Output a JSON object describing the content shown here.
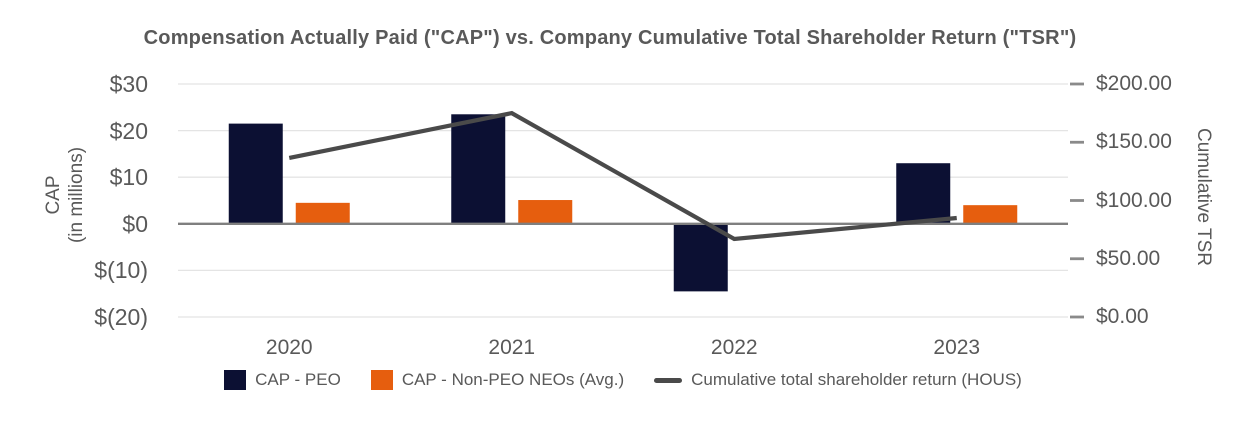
{
  "chart_data": {
    "type": "combo-bar-line",
    "title": "Compensation Actually Paid (\"CAP\") vs. Company Cumulative Total Shareholder Return (\"TSR\")",
    "categories": [
      "2020",
      "2021",
      "2022",
      "2023"
    ],
    "series": [
      {
        "name": "CAP - PEO",
        "type": "bar",
        "axis": "left",
        "color": "#0c1033",
        "values": [
          21.5,
          23.5,
          -14.5,
          13
        ]
      },
      {
        "name": "CAP - Non-PEO NEOs (Avg.)",
        "type": "bar",
        "axis": "left",
        "color": "#e65e0e",
        "values": [
          4.5,
          5.1,
          0,
          4
        ]
      },
      {
        "name": "Cumulative total shareholder return (HOUS)",
        "type": "line",
        "axis": "right",
        "color": "#4a4a4a",
        "values": [
          136.5,
          175,
          67,
          85
        ]
      }
    ],
    "left_axis": {
      "title_line1": "CAP",
      "title_line2": "(in millions)",
      "range": [
        -20,
        30
      ],
      "ticks": [
        {
          "value": 30,
          "label": "$30"
        },
        {
          "value": 20,
          "label": "$20"
        },
        {
          "value": 10,
          "label": "$10"
        },
        {
          "value": 0,
          "label": "$0"
        },
        {
          "value": -10,
          "label": "$(10)"
        },
        {
          "value": -20,
          "label": "$(20)"
        }
      ]
    },
    "right_axis": {
      "title": "Cumulative TSR",
      "range": [
        0,
        200
      ],
      "ticks": [
        {
          "value": 200,
          "label": "$200.00"
        },
        {
          "value": 150,
          "label": "$150.00"
        },
        {
          "value": 100,
          "label": "$100.00"
        },
        {
          "value": 50,
          "label": "$50.00"
        },
        {
          "value": 0,
          "label": "$0.00"
        }
      ]
    },
    "grid": "horizontal-light-gridlines-at-left-ticks",
    "legend_position": "bottom",
    "colors": {
      "background": "#ffffff",
      "text": "#595959",
      "gridline": "#e4e4e4",
      "zero_line": "#7f7f7f",
      "right_tick_dash": "#8a8a8a"
    }
  }
}
